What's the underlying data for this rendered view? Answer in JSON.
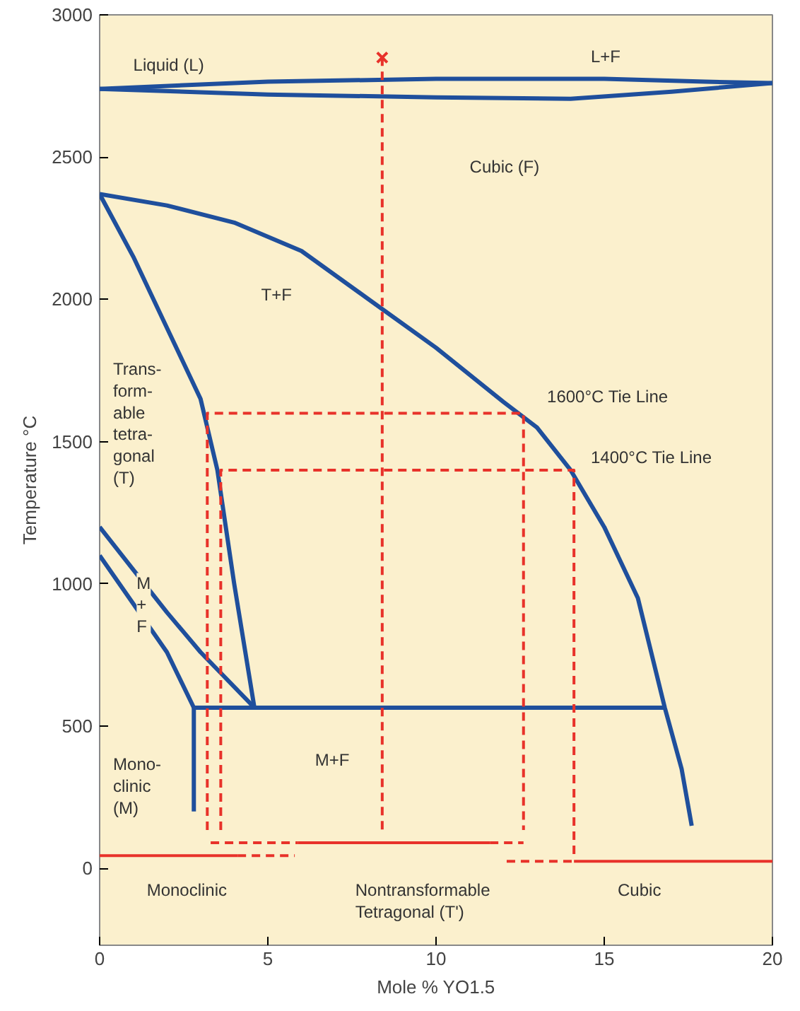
{
  "chart_data": {
    "type": "line",
    "xlabel": "Mole % YO1.5",
    "ylabel": "Temperature °C",
    "xlim": [
      0,
      20
    ],
    "ylim": [
      -270,
      3000
    ],
    "xticks": [
      0,
      5,
      10,
      15,
      20
    ],
    "yticks": [
      0,
      500,
      1000,
      1500,
      2000,
      2500,
      3000
    ],
    "grid": false,
    "series": [
      {
        "color": "#1f4f9c",
        "line_style": "solid",
        "x": [
          0,
          5,
          10,
          15,
          18,
          20
        ],
        "values": [
          2740,
          2765,
          2775,
          2775,
          2765,
          2760
        ]
      },
      {
        "color": "#1f4f9c",
        "line_style": "solid",
        "x": [
          0,
          5,
          10,
          14,
          17,
          20
        ],
        "values": [
          2740,
          2720,
          2710,
          2705,
          2730,
          2760
        ]
      },
      {
        "color": "#1f4f9c",
        "line_style": "solid",
        "x": [
          0,
          2,
          4,
          6,
          8,
          10,
          12,
          13,
          14,
          15,
          16,
          16.8,
          17.3,
          17.6
        ],
        "values": [
          2370,
          2330,
          2270,
          2170,
          2000,
          1830,
          1640,
          1550,
          1400,
          1200,
          950,
          565,
          350,
          150
        ]
      },
      {
        "color": "#1f4f9c",
        "line_style": "solid",
        "x": [
          0,
          1,
          2,
          3,
          3.5,
          4,
          4.6
        ],
        "values": [
          2370,
          2150,
          1900,
          1650,
          1400,
          1000,
          565
        ]
      },
      {
        "color": "#1f4f9c",
        "line_style": "solid",
        "x": [
          0,
          1,
          2,
          3,
          4.6
        ],
        "values": [
          1200,
          1050,
          900,
          760,
          565
        ]
      },
      {
        "color": "#1f4f9c",
        "line_style": "solid",
        "x": [
          0,
          1,
          2,
          2.8
        ],
        "values": [
          1100,
          930,
          760,
          565
        ]
      },
      {
        "color": "#1f4f9c",
        "line_style": "solid",
        "x": [
          2.8,
          16.8
        ],
        "values": [
          565,
          565
        ]
      },
      {
        "color": "#1f4f9c",
        "line_style": "solid",
        "x": [
          2.8,
          2.8
        ],
        "values": [
          565,
          200
        ]
      },
      {
        "color": "#e8322a",
        "line_style": "dashed",
        "x": [
          8.4,
          8.4
        ],
        "values": [
          2850,
          135
        ]
      },
      {
        "color": "#e8322a",
        "line_style": "dashed",
        "x": [
          3.2,
          3.2,
          12.6,
          12.6
        ],
        "values": [
          135,
          1600,
          1600,
          135
        ]
      },
      {
        "color": "#e8322a",
        "line_style": "dashed",
        "x": [
          3.6,
          3.6,
          14.1,
          14.1
        ],
        "values": [
          135,
          1400,
          1400,
          45
        ]
      },
      {
        "color": "#e8322a",
        "line_style": "solid",
        "x": [
          0,
          4.1
        ],
        "values": [
          45,
          45
        ]
      },
      {
        "color": "#e8322a",
        "line_style": "dashed",
        "x": [
          4.1,
          5.8
        ],
        "values": [
          45,
          45
        ]
      },
      {
        "color": "#e8322a",
        "line_style": "dashed",
        "x": [
          3.3,
          5.9
        ],
        "values": [
          90,
          90
        ]
      },
      {
        "color": "#e8322a",
        "line_style": "solid",
        "x": [
          5.9,
          11.6
        ],
        "values": [
          90,
          90
        ]
      },
      {
        "color": "#e8322a",
        "line_style": "dashed",
        "x": [
          11.6,
          12.6
        ],
        "values": [
          90,
          90
        ]
      },
      {
        "color": "#e8322a",
        "line_style": "dashed",
        "x": [
          12.1,
          14.1
        ],
        "values": [
          25,
          25
        ]
      },
      {
        "color": "#e8322a",
        "line_style": "solid",
        "x": [
          14.1,
          20
        ],
        "values": [
          25,
          25
        ]
      },
      {
        "type": "scatter",
        "marker": "cross",
        "color": "#e8322a",
        "x": [
          8.4
        ],
        "values": [
          2850
        ]
      }
    ],
    "annotations": [
      "Liquid (L)",
      "L+F",
      "Cubic (F)",
      "T+F",
      "Trans-\nform-\nable\ntetra-\ngonal\n(T)",
      "M\n+\nF",
      "Mono-\nclinic\n(M)",
      "M+F",
      "1600°C Tie Line",
      "1400°C Tie Line",
      "Monoclinic",
      "Nontransformable\nTetragonal (T')",
      "Cubic"
    ]
  }
}
